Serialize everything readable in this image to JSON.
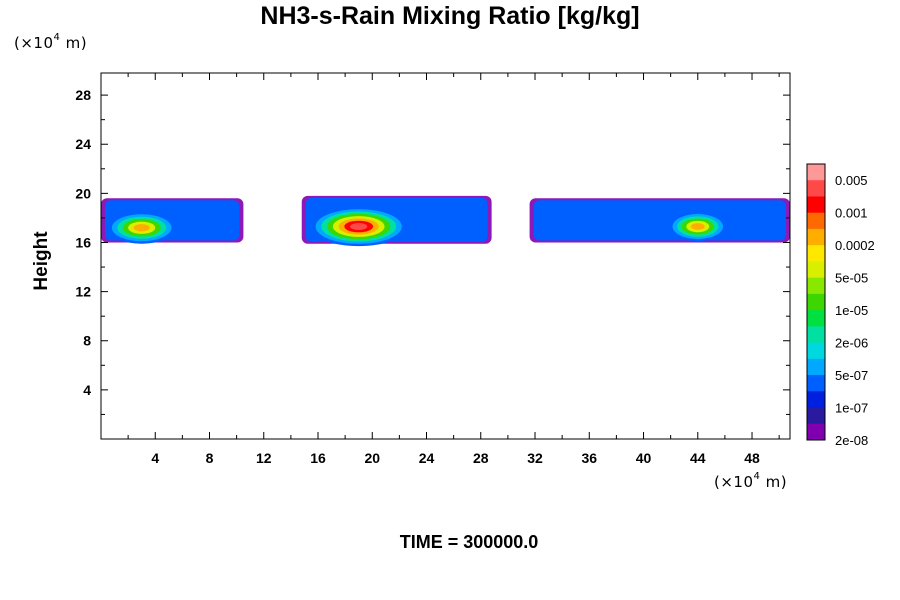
{
  "title": "NH3-s-Rain Mixing Ratio [kg/kg]",
  "y_unit": {
    "prefix": "(×10",
    "exp": "4",
    "suffix": " m)"
  },
  "x_unit": {
    "prefix": "(×10",
    "exp": "4",
    "suffix": " m)"
  },
  "time_label": "TIME = 300000.0",
  "chart_data": {
    "type": "heatmap",
    "title": "NH3-s-Rain Mixing Ratio [kg/kg]",
    "xlabel": "",
    "ylabel": "Height",
    "xlim": [
      0,
      50.8
    ],
    "ylim": [
      0,
      29.8
    ],
    "x_ticks": [
      "4",
      "8",
      "12",
      "16",
      "20",
      "24",
      "28",
      "32",
      "36",
      "40",
      "44",
      "48"
    ],
    "y_ticks": [
      "4",
      "8",
      "12",
      "16",
      "20",
      "24",
      "28"
    ],
    "x_tick_values": [
      4,
      8,
      12,
      16,
      20,
      24,
      28,
      32,
      36,
      40,
      44,
      48
    ],
    "y_tick_values": [
      4,
      8,
      12,
      16,
      20,
      24,
      28
    ],
    "colorbar_labels": [
      "0.005",
      "0.001",
      "0.0002",
      "5e-05",
      "1e-05",
      "2e-06",
      "5e-07",
      "1e-07",
      "2e-08"
    ],
    "colorbar_colors": [
      "#ff9999",
      "#ff4848",
      "#ff0000",
      "#ff6a00",
      "#ffae00",
      "#ffe800",
      "#d8f000",
      "#88e800",
      "#3ed600",
      "#00e040",
      "#00e0a0",
      "#00d8e0",
      "#00a8ff",
      "#0060ff",
      "#0020e0",
      "#2a1aa0",
      "#8000b0"
    ],
    "levels": [
      {
        "label": "2e-08",
        "color": "#8000b0"
      },
      {
        "label": "1e-07",
        "color": "#0060ff"
      },
      {
        "label": "5e-07",
        "color": "#00a8ff"
      },
      {
        "label": "2e-06",
        "color": "#00e0a0"
      },
      {
        "label": "1e-05",
        "color": "#3ed600"
      },
      {
        "label": "5e-05",
        "color": "#d8f000"
      },
      {
        "label": "0.0002",
        "color": "#ffae00"
      },
      {
        "label": "0.001",
        "color": "#ff0000"
      },
      {
        "label": "0.005",
        "color": "#ff4848"
      }
    ],
    "regions": [
      {
        "name": "left",
        "cx": 3.0,
        "cy": 17.2,
        "rx": 2.6,
        "ry": 1.3,
        "max_level": 6
      },
      {
        "name": "center",
        "cx": 19.0,
        "cy": 17.3,
        "rx": 3.6,
        "ry": 1.6,
        "max_level": 8
      },
      {
        "name": "right",
        "cx": 44.0,
        "cy": 17.3,
        "rx": 2.2,
        "ry": 1.2,
        "max_level": 6
      }
    ],
    "bands": [
      {
        "name": "left-band",
        "x0": 0,
        "x1": 10.5,
        "y0": 16.0,
        "y1": 19.6
      },
      {
        "name": "center-band",
        "x0": 14.8,
        "x1": 28.8,
        "y0": 15.9,
        "y1": 19.8
      },
      {
        "name": "right-band",
        "x0": 31.6,
        "x1": 50.8,
        "y0": 16.0,
        "y1": 19.6
      }
    ]
  }
}
